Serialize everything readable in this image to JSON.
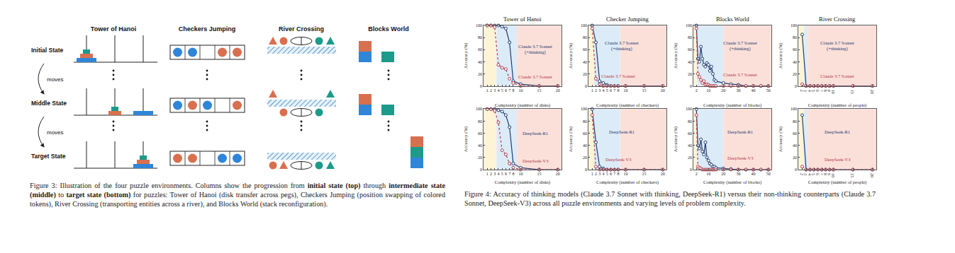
{
  "figure3": {
    "columns": [
      "Tower of Hanoi",
      "Checkers Jumping",
      "River Crossing",
      "Blocks World"
    ],
    "rows": [
      "Initial State",
      "Middle State",
      "Target State"
    ],
    "transitions": [
      "moves",
      "moves"
    ],
    "caption": [
      {
        "text": "Figure 3: Illustration of the four puzzle environments. Columns show the progression from "
      },
      {
        "text": "initial state (top)",
        "bold": true
      },
      {
        "text": " through "
      },
      {
        "text": "intermediate state (middle)",
        "bold": true
      },
      {
        "text": " to "
      },
      {
        "text": "target state (bottom)",
        "bold": true
      },
      {
        "text": " for puzzles: Tower of Hanoi (disk transfer across pegs), Checkers Jumping (position swapping of colored tokens), River Crossing (transporting entities across a river), and Blocks World (stack reconfiguration)."
      }
    ]
  },
  "chart_data": [
    {
      "type": "line",
      "title": "Tower of Hanoi",
      "x_label": "Complexity (number of disks)",
      "y_label": "Accuracy (%)",
      "x": [
        1,
        2,
        3,
        4,
        5,
        6,
        7,
        8,
        10,
        15,
        20
      ],
      "xlim": [
        0,
        21
      ],
      "xticks": [
        1,
        2,
        3,
        4,
        5,
        6,
        7,
        8,
        10,
        15,
        20
      ],
      "ylim": [
        0,
        100
      ],
      "yticks": [
        0,
        20,
        40,
        60,
        80,
        100
      ],
      "bands": [
        {
          "from": 0,
          "to": 3.5,
          "color": "#fdf3d6"
        },
        {
          "from": 3.5,
          "to": 9,
          "color": "#dcebf8"
        },
        {
          "from": 9,
          "to": 21,
          "color": "#fbe0da"
        }
      ],
      "series": [
        {
          "name": "Claude 3.7 Sonnet\n(+thinking)",
          "color": "#1f3b6f",
          "line_style": "solid",
          "marker": "open circle",
          "values": [
            100,
            100,
            100,
            100,
            98,
            95,
            72,
            8,
            3,
            0,
            0
          ],
          "label": {
            "x": 14,
            "y": 60
          }
        },
        {
          "name": "Claude 3.7 Sonnet",
          "color": "#b3394a",
          "line_style": "dotted",
          "marker": "open circle",
          "values": [
            100,
            100,
            97,
            35,
            30,
            28,
            12,
            5,
            0,
            0,
            0
          ],
          "label": {
            "x": 14,
            "y": 15
          }
        }
      ]
    },
    {
      "type": "line",
      "title": "Checker Jumping",
      "x_label": "Complexity (number of checkers)",
      "y_label": "Accuracy (%)",
      "x": [
        1,
        2,
        3,
        4,
        5,
        6,
        7,
        8,
        10,
        15,
        20
      ],
      "xlim": [
        0,
        21
      ],
      "xticks": [
        1,
        2,
        3,
        4,
        5,
        6,
        7,
        8,
        10,
        15,
        20
      ],
      "ylim": [
        0,
        100
      ],
      "yticks": [
        0,
        20,
        40,
        60,
        80,
        100
      ],
      "bands": [
        {
          "from": 0,
          "to": 1.5,
          "color": "#fdf3d6"
        },
        {
          "from": 1.5,
          "to": 8.5,
          "color": "#dcebf8"
        },
        {
          "from": 8.5,
          "to": 21,
          "color": "#fbe0da"
        }
      ],
      "series": [
        {
          "name": "Claude 3.7 Sonnet\n(+thinking)",
          "color": "#1f3b6f",
          "line_style": "solid",
          "marker": "open circle",
          "values": [
            100,
            72,
            8,
            5,
            2,
            0,
            0,
            0,
            0,
            0,
            0
          ],
          "label": {
            "x": 9,
            "y": 66
          }
        },
        {
          "name": "Claude 3.7 Sonnet",
          "color": "#b3394a",
          "line_style": "dotted",
          "marker": "open circle",
          "values": [
            95,
            12,
            2,
            0,
            0,
            0,
            0,
            0,
            0,
            0,
            0
          ],
          "label": {
            "x": 8,
            "y": 17
          }
        }
      ]
    },
    {
      "type": "line",
      "title": "Blocks World",
      "x_label": "Complexity (number of blocks)",
      "y_label": "Accuracy (%)",
      "x": [
        2,
        3,
        4,
        5,
        6,
        7,
        8,
        9,
        10,
        11,
        12,
        13,
        14,
        15,
        20,
        25,
        30,
        35,
        40,
        45,
        50
      ],
      "xlim": [
        0,
        52
      ],
      "xticks": [
        2,
        10,
        20,
        30,
        40,
        50
      ],
      "ylim": [
        0,
        100
      ],
      "yticks": [
        0,
        20,
        40,
        60,
        80,
        100
      ],
      "bands": [
        {
          "from": 0,
          "to": 2.5,
          "color": "#fdf3d6"
        },
        {
          "from": 2.5,
          "to": 20,
          "color": "#dcebf8"
        },
        {
          "from": 20,
          "to": 52,
          "color": "#fbe0da"
        }
      ],
      "series": [
        {
          "name": "Claude 3.7 Sonnet\n(+thinking)",
          "color": "#1f3b6f",
          "line_style": "solid",
          "marker": "open circle",
          "values": [
            100,
            45,
            40,
            65,
            45,
            35,
            32,
            38,
            35,
            25,
            32,
            20,
            10,
            8,
            5,
            3,
            2,
            0,
            0,
            0,
            0
          ],
          "label": {
            "x": 31,
            "y": 66
          }
        },
        {
          "name": "Claude 3.7 Sonnet",
          "color": "#b3394a",
          "line_style": "dotted",
          "marker": "open circle",
          "values": [
            95,
            20,
            15,
            10,
            5,
            8,
            2,
            3,
            2,
            0,
            0,
            0,
            0,
            0,
            0,
            0,
            0,
            0,
            0,
            0,
            0
          ],
          "label": {
            "x": 31,
            "y": 19
          }
        }
      ]
    },
    {
      "type": "line",
      "title": "River Crossing",
      "x_label": "Complexity (number of people)",
      "y_label": "Accuracy (%)",
      "x": [
        2,
        3,
        4,
        5,
        6,
        7,
        8,
        9,
        10,
        15,
        20
      ],
      "xlim": [
        1,
        21
      ],
      "xticks": [
        2,
        3,
        4,
        5,
        6,
        7,
        8,
        9,
        10,
        15,
        20
      ],
      "ylim": [
        0,
        100
      ],
      "yticks": [
        0,
        20,
        40,
        60,
        80,
        100
      ],
      "bands": [
        {
          "from": 1,
          "to": 2.5,
          "color": "#fdf3d6"
        },
        {
          "from": 2.5,
          "to": 3.5,
          "color": "#dcebf8"
        },
        {
          "from": 3.5,
          "to": 21,
          "color": "#fbe0da"
        }
      ],
      "series": [
        {
          "name": "Claude 3.7 Sonnet\n(+thinking)",
          "color": "#1f3b6f",
          "line_style": "solid",
          "marker": "open circle",
          "values": [
            85,
            0,
            0,
            0,
            0,
            0,
            0,
            0,
            0,
            0,
            0
          ],
          "label": {
            "x": 11,
            "y": 66
          }
        },
        {
          "name": "Claude 3.7 Sonnet",
          "color": "#b3394a",
          "line_style": "dotted",
          "marker": "open circle",
          "values": [
            3,
            0,
            0,
            0,
            0,
            0,
            0,
            0,
            0,
            0,
            0
          ],
          "label": {
            "x": 11,
            "y": 17
          }
        }
      ]
    },
    {
      "type": "line",
      "x_label": "Complexity (number of disks)",
      "y_label": "Accuracy (%)",
      "x": [
        1,
        2,
        3,
        4,
        5,
        6,
        7,
        8,
        10,
        15,
        20
      ],
      "xlim": [
        0,
        21
      ],
      "xticks": [
        1,
        2,
        3,
        4,
        5,
        6,
        7,
        8,
        10,
        15,
        20
      ],
      "ylim": [
        0,
        100
      ],
      "yticks": [
        0,
        20,
        40,
        60,
        80,
        100
      ],
      "bands": [
        {
          "from": 0,
          "to": 3.5,
          "color": "#fdf3d6"
        },
        {
          "from": 3.5,
          "to": 9,
          "color": "#dcebf8"
        },
        {
          "from": 9,
          "to": 21,
          "color": "#fbe0da"
        }
      ],
      "series": [
        {
          "name": "DeepSeek-R1",
          "color": "#1f3b6f",
          "line_style": "solid",
          "marker": "open circle",
          "values": [
            100,
            100,
            100,
            98,
            96,
            90,
            70,
            10,
            3,
            0,
            0
          ],
          "label": {
            "x": 14,
            "y": 60
          }
        },
        {
          "name": "DeepSeek-V3",
          "color": "#b3394a",
          "line_style": "dotted",
          "marker": "open circle",
          "values": [
            100,
            100,
            97,
            78,
            32,
            25,
            10,
            3,
            0,
            0,
            0
          ],
          "label": {
            "x": 14,
            "y": 15
          }
        }
      ]
    },
    {
      "type": "line",
      "x_label": "Complexity (number of checkers)",
      "y_label": "Accuracy (%)",
      "x": [
        1,
        2,
        3,
        4,
        5,
        6,
        7,
        8,
        10,
        15,
        20
      ],
      "xlim": [
        0,
        21
      ],
      "xticks": [
        1,
        2,
        3,
        4,
        5,
        6,
        7,
        8,
        10,
        15,
        20
      ],
      "ylim": [
        0,
        100
      ],
      "yticks": [
        0,
        20,
        40,
        60,
        80,
        100
      ],
      "bands": [
        {
          "from": 0,
          "to": 1.5,
          "color": "#fdf3d6"
        },
        {
          "from": 1.5,
          "to": 8.5,
          "color": "#dcebf8"
        },
        {
          "from": 8.5,
          "to": 21,
          "color": "#fbe0da"
        }
      ],
      "series": [
        {
          "name": "DeepSeek-R1",
          "color": "#1f3b6f",
          "line_style": "solid",
          "marker": "open circle",
          "values": [
            100,
            45,
            5,
            2,
            0,
            0,
            0,
            0,
            0,
            0,
            0
          ],
          "label": {
            "x": 9,
            "y": 62
          }
        },
        {
          "name": "DeepSeek-V3",
          "color": "#b3394a",
          "line_style": "dotted",
          "marker": "open circle",
          "values": [
            90,
            5,
            0,
            0,
            0,
            0,
            0,
            0,
            0,
            0,
            0
          ],
          "label": {
            "x": 8,
            "y": 17
          }
        }
      ]
    },
    {
      "type": "line",
      "x_label": "Complexity (number of blocks)",
      "y_label": "Accuracy (%)",
      "x": [
        2,
        3,
        4,
        5,
        6,
        7,
        8,
        9,
        10,
        11,
        12,
        13,
        14,
        15,
        20,
        25,
        30,
        35,
        40,
        45,
        50
      ],
      "xlim": [
        0,
        52
      ],
      "xticks": [
        2,
        10,
        20,
        30,
        40,
        50
      ],
      "ylim": [
        0,
        100
      ],
      "yticks": [
        0,
        20,
        40,
        60,
        80,
        100
      ],
      "bands": [
        {
          "from": 0,
          "to": 2.5,
          "color": "#fdf3d6"
        },
        {
          "from": 2.5,
          "to": 20,
          "color": "#dcebf8"
        },
        {
          "from": 20,
          "to": 52,
          "color": "#fbe0da"
        }
      ],
      "series": [
        {
          "name": "DeepSeek-R1",
          "color": "#1f3b6f",
          "line_style": "solid",
          "marker": "open circle",
          "values": [
            100,
            40,
            35,
            50,
            30,
            25,
            45,
            20,
            15,
            10,
            8,
            5,
            5,
            3,
            2,
            1,
            0,
            0,
            0,
            0,
            0
          ],
          "label": {
            "x": 31,
            "y": 62
          }
        },
        {
          "name": "DeepSeek-V3",
          "color": "#b3394a",
          "line_style": "dotted",
          "marker": "open circle",
          "values": [
            90,
            5,
            3,
            2,
            0,
            0,
            0,
            0,
            0,
            0,
            0,
            0,
            0,
            0,
            0,
            0,
            0,
            0,
            0,
            0,
            0
          ],
          "label": {
            "x": 31,
            "y": 19
          }
        }
      ]
    },
    {
      "type": "line",
      "x_label": "Complexity (number of people)",
      "y_label": "Accuracy (%)",
      "x": [
        2,
        3,
        4,
        5,
        6,
        7,
        8,
        9,
        10,
        15,
        20
      ],
      "xlim": [
        1,
        21
      ],
      "xticks": [
        2,
        3,
        4,
        5,
        6,
        7,
        8,
        9,
        10,
        15,
        20
      ],
      "ylim": [
        0,
        100
      ],
      "yticks": [
        0,
        20,
        40,
        60,
        80,
        100
      ],
      "bands": [
        {
          "from": 1,
          "to": 2.5,
          "color": "#fdf3d6"
        },
        {
          "from": 2.5,
          "to": 3.5,
          "color": "#dcebf8"
        },
        {
          "from": 3.5,
          "to": 21,
          "color": "#fbe0da"
        }
      ],
      "series": [
        {
          "name": "DeepSeek-R1",
          "color": "#1f3b6f",
          "line_style": "solid",
          "marker": "open circle",
          "values": [
            90,
            0,
            0,
            0,
            0,
            0,
            0,
            0,
            0,
            0,
            0
          ],
          "label": {
            "x": 11,
            "y": 62
          }
        },
        {
          "name": "DeepSeek-V3",
          "color": "#b3394a",
          "line_style": "dotted",
          "marker": "open circle",
          "values": [
            5,
            0,
            0,
            0,
            0,
            0,
            0,
            0,
            0,
            0,
            0
          ],
          "label": {
            "x": 11,
            "y": 17
          }
        }
      ]
    }
  ],
  "figure4_caption": "Figure 4: Accuracy of thinking models (Claude 3.7 Sonnet with thinking, DeepSeek-R1) versus their non-thinking counterparts (Claude 3.7 Sonnet, DeepSeek-V3) across all puzzle environments and varying levels of problem complexity."
}
